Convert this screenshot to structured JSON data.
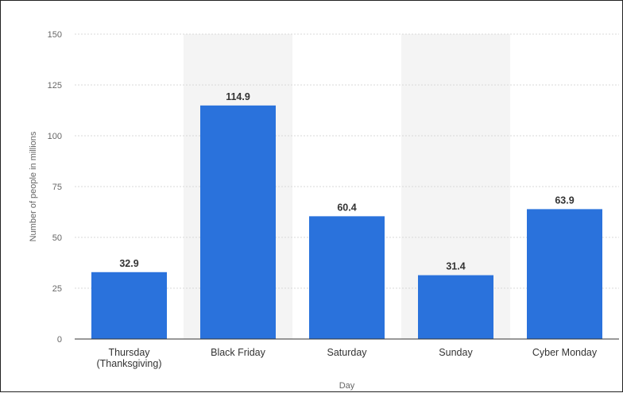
{
  "chart_data": {
    "type": "bar",
    "categories": [
      "Thursday\n(Thanksgiving)",
      "Black Friday",
      "Saturday",
      "Sunday",
      "Cyber Monday"
    ],
    "values": [
      32.9,
      114.9,
      60.4,
      31.4,
      63.9
    ],
    "value_labels": [
      "32.9",
      "114.9",
      "60.4",
      "31.4",
      "63.9"
    ],
    "xlabel": "Day",
    "ylabel": "Number of people in millions",
    "ylim": [
      0,
      150
    ],
    "yticks": [
      0,
      25,
      50,
      75,
      100,
      125,
      150
    ],
    "grid": true,
    "bar_color": "#2a72dc",
    "shaded_band_color": "#f4f4f4",
    "shaded_categories": [
      "Black Friday",
      "Sunday"
    ]
  }
}
